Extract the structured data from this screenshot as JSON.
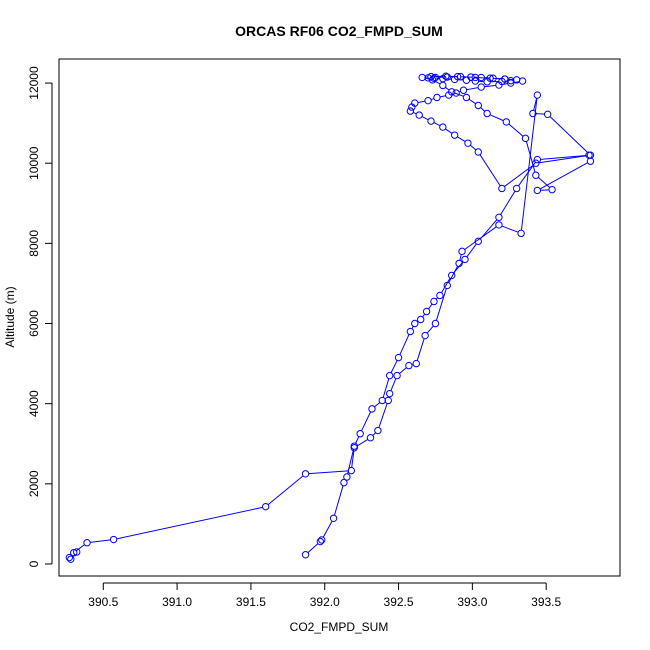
{
  "chart_data": {
    "type": "line",
    "title": "ORCAS RF06 CO2_FMPD_SUM",
    "xlabel": "CO2_FMPD_SUM",
    "ylabel": "Altitude (m)",
    "xlim": [
      390.2,
      394.0
    ],
    "ylim": [
      -300,
      12600
    ],
    "x_ticks": [
      390.5,
      391.0,
      391.5,
      392.0,
      392.5,
      393.0,
      393.5
    ],
    "x_tick_labels": [
      "390.5",
      "391.0",
      "391.5",
      "392.0",
      "392.5",
      "393.0",
      "393.5"
    ],
    "y_ticks": [
      0,
      2000,
      4000,
      6000,
      8000,
      10000,
      12000
    ],
    "y_tick_labels": [
      "0",
      "2000",
      "4000",
      "6000",
      "8000",
      "10000",
      "12000"
    ],
    "grid": false,
    "legend": "none",
    "series": [
      {
        "color": "#0000ff",
        "marker": "open-circle",
        "x": [
          391.87,
          391.97,
          391.98,
          392.06,
          392.13,
          392.15,
          392.2,
          392.24,
          392.32,
          392.39,
          392.44,
          392.5,
          392.58,
          392.61,
          392.65,
          392.69,
          392.74,
          392.78,
          392.86,
          392.95,
          393.04,
          393.18,
          393.3,
          393.44,
          393.79,
          393.8,
          393.44,
          393.54,
          393.43,
          393.36,
          393.23,
          393.1,
          393.04,
          392.96,
          392.86,
          392.8,
          392.73,
          392.66,
          392.72,
          392.82,
          392.92,
          393.02,
          393.12,
          393.22,
          393.26,
          393.2,
          393.1,
          393.02,
          392.96,
          392.88,
          392.8,
          392.74,
          392.7,
          392.75,
          392.83,
          392.9,
          392.99,
          393.06,
          393.14,
          393.22,
          393.3,
          393.34,
          393.26,
          393.18,
          393.06,
          392.94,
          392.89,
          392.84,
          392.76,
          392.7,
          392.61,
          392.59,
          392.58,
          392.64,
          392.72,
          392.8,
          392.88,
          392.97,
          393.04,
          393.2,
          393.43,
          393.8,
          393.51,
          393.41,
          393.44,
          393.33,
          393.18,
          392.93,
          392.91,
          392.83,
          392.75,
          392.68,
          392.62,
          392.57,
          392.49,
          392.44,
          392.43,
          392.36,
          392.31,
          392.2,
          392.18,
          391.87,
          391.6,
          390.57,
          390.39,
          390.3,
          390.27,
          390.28,
          390.32
        ],
        "y": [
          230,
          560,
          600,
          1140,
          2030,
          2170,
          2940,
          3250,
          3870,
          4080,
          4700,
          5150,
          5800,
          6000,
          6100,
          6300,
          6550,
          6700,
          7200,
          7600,
          8050,
          8650,
          9370,
          10090,
          10200,
          10050,
          9320,
          9340,
          9700,
          10620,
          11030,
          11240,
          11440,
          11640,
          11780,
          11940,
          12080,
          12140,
          12160,
          12170,
          12160,
          12140,
          12120,
          12100,
          12060,
          12040,
          12030,
          12050,
          12070,
          12090,
          12110,
          12120,
          12130,
          12140,
          12150,
          12160,
          12150,
          12140,
          12120,
          12100,
          12080,
          12050,
          12000,
          11950,
          11900,
          11820,
          11750,
          11700,
          11640,
          11560,
          11500,
          11400,
          11300,
          11200,
          11050,
          10900,
          10700,
          10500,
          10280,
          9370,
          10000,
          10200,
          11220,
          11240,
          11700,
          8250,
          8460,
          7800,
          7500,
          6950,
          6000,
          5700,
          5000,
          4950,
          4700,
          4250,
          4080,
          3330,
          3150,
          2900,
          2330,
          2250,
          1430,
          610,
          530,
          280,
          160,
          120,
          300
        ]
      }
    ]
  }
}
